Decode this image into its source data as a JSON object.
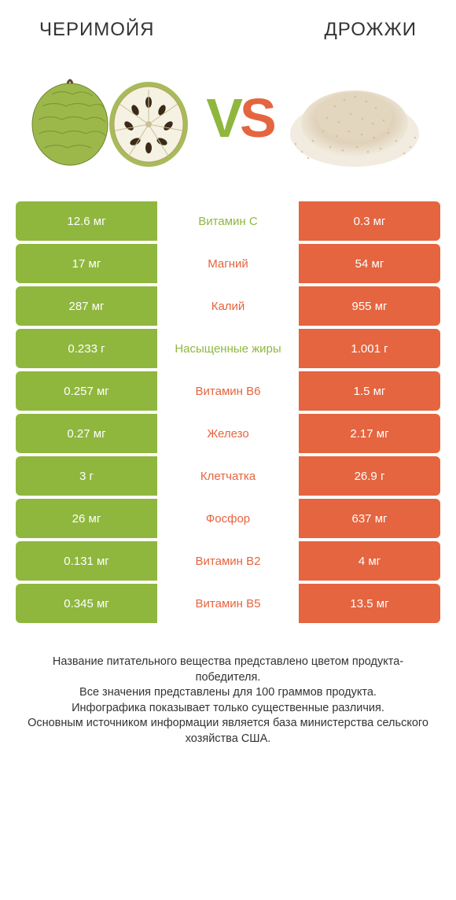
{
  "colors": {
    "green": "#8fb73e",
    "orange": "#e46540",
    "nutrient_green": "#8fb73e",
    "nutrient_orange": "#e46540",
    "text": "#333333",
    "white": "#ffffff"
  },
  "left_title": "ЧЕРИМОЙЯ",
  "right_title": "ДРОЖЖИ",
  "vs_v": "V",
  "vs_s": "S",
  "rows": [
    {
      "left": "12.6 мг",
      "nutrient": "Витамин C",
      "right": "0.3 мг",
      "winner": "left"
    },
    {
      "left": "17 мг",
      "nutrient": "Магний",
      "right": "54 мг",
      "winner": "right"
    },
    {
      "left": "287 мг",
      "nutrient": "Калий",
      "right": "955 мг",
      "winner": "right"
    },
    {
      "left": "0.233 г",
      "nutrient": "Насыщенные жиры",
      "right": "1.001 г",
      "winner": "left"
    },
    {
      "left": "0.257 мг",
      "nutrient": "Витамин B6",
      "right": "1.5 мг",
      "winner": "right"
    },
    {
      "left": "0.27 мг",
      "nutrient": "Железо",
      "right": "2.17 мг",
      "winner": "right"
    },
    {
      "left": "3 г",
      "nutrient": "Клетчатка",
      "right": "26.9 г",
      "winner": "right"
    },
    {
      "left": "26 мг",
      "nutrient": "Фосфор",
      "right": "637 мг",
      "winner": "right"
    },
    {
      "left": "0.131 мг",
      "nutrient": "Витамин B2",
      "right": "4 мг",
      "winner": "right"
    },
    {
      "left": "0.345 мг",
      "nutrient": "Витамин B5",
      "right": "13.5 мг",
      "winner": "right"
    }
  ],
  "footer_lines": [
    "Название питательного вещества представлено цветом продукта-победителя.",
    "Все значения представлены для 100 граммов продукта.",
    "Инфографика показывает только существенные различия.",
    "Основным источником информации является база министерства сельского хозяйства США."
  ]
}
